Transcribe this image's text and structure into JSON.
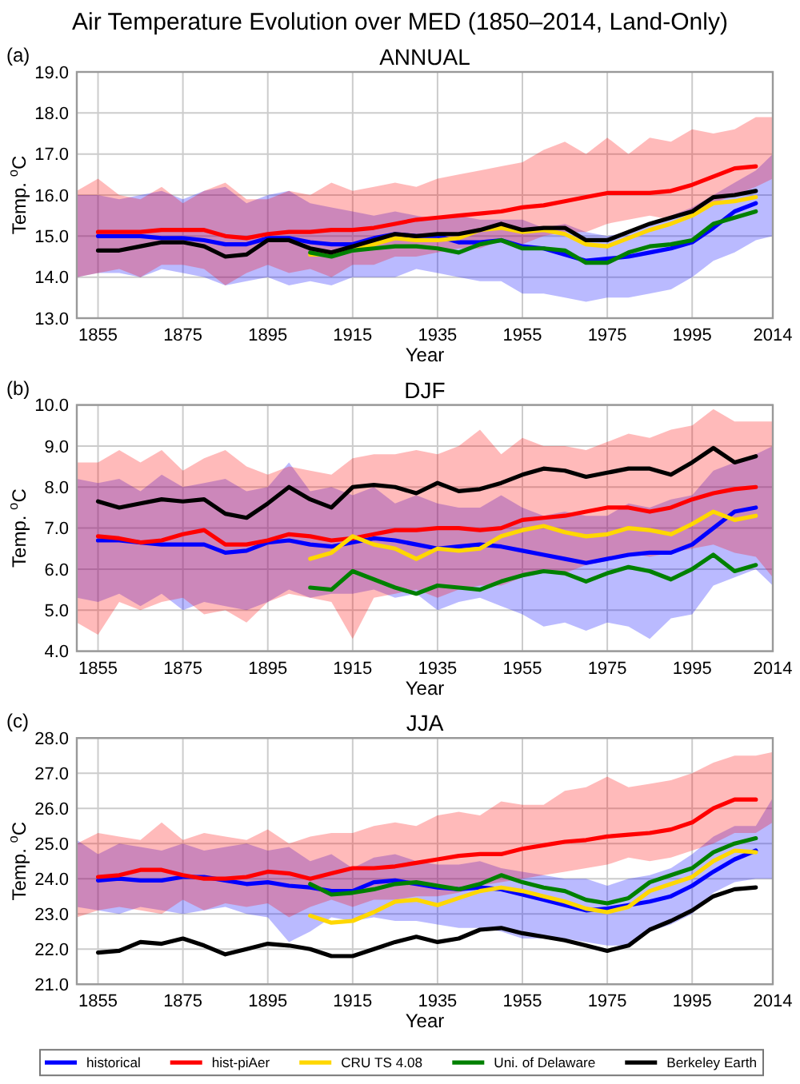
{
  "chart_data": [
    {
      "type": "line",
      "title": "Air Temperature Evolution over MED (1850–2014, Land-Only)",
      "subtitle": "ANNUAL",
      "xlabel": "Year",
      "ylabel": "Temp. $^{o}$C",
      "annotations": [
        "(a)"
      ],
      "x": [
        1850,
        1855,
        1860,
        1865,
        1870,
        1875,
        1880,
        1885,
        1890,
        1895,
        1900,
        1905,
        1910,
        1915,
        1920,
        1925,
        1930,
        1935,
        1940,
        1945,
        1950,
        1955,
        1960,
        1965,
        1970,
        1975,
        1980,
        1985,
        1990,
        1995,
        2000,
        2005,
        2010,
        2014
      ],
      "xlim": [
        1850,
        2014
      ],
      "xticks": [
        1855,
        1875,
        1895,
        1915,
        1935,
        1955,
        1975,
        1995,
        2014
      ],
      "ylim": [
        13,
        19
      ],
      "yticks": [
        {
          "value": 13,
          "label": "13.0"
        },
        {
          "value": 14,
          "label": "14.0"
        },
        {
          "value": 15,
          "label": "15.0"
        },
        {
          "value": 16,
          "label": "16.0"
        },
        {
          "value": 17,
          "label": "17.0"
        },
        {
          "value": 18,
          "label": "18.0"
        },
        {
          "value": 19,
          "label": "19.0"
        }
      ],
      "grid": true,
      "series": [
        {
          "color": "#0000ff",
          "values": [
            null,
            15.0,
            15.0,
            15.0,
            14.95,
            14.95,
            14.9,
            14.8,
            14.8,
            14.95,
            14.95,
            14.85,
            14.8,
            14.8,
            14.95,
            15.05,
            15.0,
            15.0,
            14.85,
            14.85,
            14.9,
            14.75,
            14.7,
            14.55,
            14.4,
            14.45,
            14.5,
            14.6,
            14.7,
            14.85,
            15.2,
            15.6,
            15.8,
            null
          ],
          "lower": [
            14.0,
            14.1,
            14.1,
            14.0,
            14.2,
            14.1,
            14.0,
            13.8,
            13.9,
            14.0,
            13.8,
            13.9,
            13.8,
            14.0,
            14.0,
            14.0,
            14.2,
            14.1,
            14.0,
            13.9,
            13.9,
            13.6,
            13.6,
            13.5,
            13.4,
            13.5,
            13.5,
            13.6,
            13.7,
            14.0,
            14.4,
            14.6,
            14.9,
            15.0
          ],
          "upper": [
            16.0,
            16.0,
            15.9,
            16.0,
            16.1,
            15.9,
            16.1,
            16.2,
            15.8,
            16.0,
            16.1,
            15.8,
            15.7,
            15.6,
            15.5,
            15.6,
            15.5,
            15.4,
            15.5,
            15.4,
            15.4,
            15.4,
            15.2,
            15.3,
            15.1,
            15.0,
            15.1,
            15.3,
            15.5,
            15.7,
            16.0,
            16.3,
            16.6,
            17.0
          ]
        },
        {
          "color": "#ff0000",
          "values": [
            null,
            15.1,
            15.1,
            15.1,
            15.15,
            15.15,
            15.15,
            15.0,
            14.95,
            15.05,
            15.1,
            15.1,
            15.15,
            15.15,
            15.2,
            15.3,
            15.4,
            15.45,
            15.5,
            15.55,
            15.6,
            15.7,
            15.75,
            15.85,
            15.95,
            16.05,
            16.05,
            16.05,
            16.1,
            16.25,
            16.45,
            16.65,
            16.7,
            null
          ],
          "lower": [
            14.0,
            14.1,
            14.2,
            14.0,
            14.3,
            14.3,
            14.2,
            13.8,
            14.1,
            14.3,
            14.1,
            14.2,
            14.0,
            14.3,
            14.3,
            14.5,
            14.5,
            14.6,
            14.7,
            14.7,
            14.9,
            14.8,
            15.0,
            15.1,
            15.1,
            15.3,
            15.4,
            15.5,
            15.4,
            15.6,
            15.8,
            16.0,
            16.2,
            16.4
          ],
          "upper": [
            16.1,
            16.4,
            16.0,
            15.9,
            16.2,
            15.8,
            16.1,
            16.3,
            15.9,
            15.9,
            16.1,
            16.0,
            16.3,
            16.1,
            16.2,
            16.3,
            16.2,
            16.4,
            16.5,
            16.6,
            16.7,
            16.8,
            17.1,
            17.3,
            17.0,
            17.4,
            17.0,
            17.4,
            17.3,
            17.6,
            17.5,
            17.6,
            17.9,
            17.9
          ]
        },
        {
          "color": "#ffd700",
          "values": [
            null,
            null,
            null,
            null,
            null,
            null,
            null,
            null,
            null,
            null,
            null,
            14.55,
            14.55,
            14.7,
            14.8,
            14.95,
            14.9,
            14.9,
            14.95,
            15.15,
            15.2,
            15.1,
            15.15,
            15.05,
            14.8,
            14.75,
            14.95,
            15.15,
            15.3,
            15.5,
            15.8,
            15.85,
            15.95,
            null
          ]
        },
        {
          "color": "#008000",
          "values": [
            null,
            null,
            null,
            null,
            null,
            null,
            null,
            null,
            null,
            null,
            null,
            14.6,
            14.5,
            14.65,
            14.7,
            14.75,
            14.75,
            14.7,
            14.6,
            14.8,
            14.9,
            14.7,
            14.7,
            14.65,
            14.35,
            14.35,
            14.6,
            14.75,
            14.8,
            14.9,
            15.3,
            15.45,
            15.6,
            null
          ]
        },
        {
          "color": "#000000",
          "values": [
            null,
            14.65,
            14.65,
            14.75,
            14.85,
            14.85,
            14.75,
            14.5,
            14.55,
            14.9,
            14.9,
            14.7,
            14.6,
            14.75,
            14.9,
            15.05,
            15.0,
            15.05,
            15.05,
            15.15,
            15.3,
            15.15,
            15.2,
            15.2,
            14.9,
            14.9,
            15.1,
            15.3,
            15.45,
            15.6,
            15.95,
            16.0,
            16.1,
            null
          ]
        }
      ]
    },
    {
      "type": "line",
      "title": "DJF",
      "xlabel": "Year",
      "ylabel": "Temp. $^{o}$C",
      "annotations": [
        "(b)"
      ],
      "x": [
        1850,
        1855,
        1860,
        1865,
        1870,
        1875,
        1880,
        1885,
        1890,
        1895,
        1900,
        1905,
        1910,
        1915,
        1920,
        1925,
        1930,
        1935,
        1940,
        1945,
        1950,
        1955,
        1960,
        1965,
        1970,
        1975,
        1980,
        1985,
        1990,
        1995,
        2000,
        2005,
        2010,
        2014
      ],
      "xlim": [
        1850,
        2014
      ],
      "xticks": [
        1855,
        1875,
        1895,
        1915,
        1935,
        1955,
        1975,
        1995,
        2014
      ],
      "ylim": [
        4,
        10
      ],
      "yticks": [
        {
          "value": 4,
          "label": "4.0"
        },
        {
          "value": 5,
          "label": "5.0"
        },
        {
          "value": 6,
          "label": "6.0"
        },
        {
          "value": 7,
          "label": "7.0"
        },
        {
          "value": 8,
          "label": "8.0"
        },
        {
          "value": 9,
          "label": "9.0"
        },
        {
          "value": 10,
          "label": "10.0"
        }
      ],
      "grid": true,
      "series": [
        {
          "color": "#0000ff",
          "values": [
            null,
            6.7,
            6.7,
            6.65,
            6.6,
            6.6,
            6.6,
            6.4,
            6.45,
            6.65,
            6.7,
            6.6,
            6.55,
            6.65,
            6.75,
            6.7,
            6.6,
            6.5,
            6.55,
            6.6,
            6.55,
            6.45,
            6.35,
            6.25,
            6.15,
            6.25,
            6.35,
            6.4,
            6.4,
            6.6,
            7.0,
            7.4,
            7.5,
            null
          ],
          "lower": [
            5.3,
            5.2,
            5.4,
            5.1,
            5.4,
            5.0,
            5.2,
            5.1,
            5.0,
            5.2,
            5.5,
            5.3,
            5.4,
            5.4,
            5.5,
            5.3,
            5.4,
            5.0,
            5.2,
            5.3,
            5.1,
            4.9,
            4.6,
            4.7,
            4.5,
            4.7,
            4.6,
            4.3,
            4.8,
            4.9,
            5.6,
            5.8,
            6.0,
            5.6
          ],
          "upper": [
            8.2,
            8.1,
            8.2,
            7.9,
            8.3,
            8.0,
            8.1,
            8.2,
            7.9,
            8.0,
            8.6,
            7.9,
            8.0,
            7.8,
            8.0,
            7.6,
            7.8,
            7.6,
            7.5,
            7.5,
            7.8,
            7.5,
            7.3,
            7.4,
            7.3,
            7.3,
            7.6,
            7.5,
            7.7,
            7.8,
            8.4,
            8.6,
            8.8,
            9.0
          ]
        },
        {
          "color": "#ff0000",
          "values": [
            null,
            6.8,
            6.75,
            6.65,
            6.7,
            6.85,
            6.95,
            6.6,
            6.6,
            6.7,
            6.85,
            6.8,
            6.7,
            6.75,
            6.85,
            6.95,
            6.95,
            7.0,
            7.0,
            6.95,
            7.0,
            7.2,
            7.25,
            7.3,
            7.4,
            7.5,
            7.5,
            7.4,
            7.5,
            7.7,
            7.85,
            7.95,
            8.0,
            null
          ],
          "lower": [
            4.7,
            4.4,
            5.2,
            5.0,
            5.2,
            5.3,
            4.9,
            5.0,
            4.7,
            5.2,
            5.4,
            5.3,
            5.2,
            4.3,
            5.3,
            5.4,
            5.5,
            5.3,
            5.5,
            5.6,
            5.6,
            5.8,
            6.0,
            5.9,
            6.1,
            6.2,
            6.4,
            6.3,
            6.4,
            6.5,
            6.6,
            6.4,
            6.3,
            5.8
          ],
          "upper": [
            8.6,
            8.6,
            8.9,
            8.6,
            8.9,
            8.4,
            8.7,
            8.9,
            8.5,
            8.3,
            8.5,
            8.4,
            8.3,
            8.7,
            8.8,
            8.8,
            8.9,
            8.8,
            9.0,
            9.4,
            8.8,
            9.2,
            9.0,
            9.0,
            8.9,
            9.1,
            9.3,
            9.2,
            9.4,
            9.5,
            9.9,
            9.6,
            9.6,
            9.6
          ]
        },
        {
          "color": "#ffd700",
          "values": [
            null,
            null,
            null,
            null,
            null,
            null,
            null,
            null,
            null,
            null,
            null,
            6.25,
            6.4,
            6.8,
            6.6,
            6.5,
            6.25,
            6.5,
            6.45,
            6.5,
            6.8,
            6.95,
            7.05,
            6.9,
            6.8,
            6.85,
            7.0,
            6.95,
            6.85,
            7.1,
            7.4,
            7.2,
            7.3,
            null
          ]
        },
        {
          "color": "#008000",
          "values": [
            null,
            null,
            null,
            null,
            null,
            null,
            null,
            null,
            null,
            null,
            null,
            5.55,
            5.5,
            5.95,
            5.75,
            5.55,
            5.4,
            5.6,
            5.55,
            5.5,
            5.7,
            5.85,
            5.95,
            5.9,
            5.7,
            5.9,
            6.05,
            5.95,
            5.75,
            6.0,
            6.35,
            5.95,
            6.1,
            null
          ]
        },
        {
          "color": "#000000",
          "values": [
            null,
            7.65,
            7.5,
            7.6,
            7.7,
            7.65,
            7.7,
            7.35,
            7.25,
            7.6,
            8.0,
            7.7,
            7.5,
            8.0,
            8.05,
            8.0,
            7.85,
            8.1,
            7.9,
            7.95,
            8.1,
            8.3,
            8.45,
            8.4,
            8.25,
            8.35,
            8.45,
            8.45,
            8.3,
            8.6,
            8.95,
            8.6,
            8.75,
            null
          ]
        }
      ]
    },
    {
      "type": "line",
      "title": "JJA",
      "xlabel": "Year",
      "ylabel": "Temp. $^{o}$C",
      "annotations": [
        "(c)"
      ],
      "x": [
        1850,
        1855,
        1860,
        1865,
        1870,
        1875,
        1880,
        1885,
        1890,
        1895,
        1900,
        1905,
        1910,
        1915,
        1920,
        1925,
        1930,
        1935,
        1940,
        1945,
        1950,
        1955,
        1960,
        1965,
        1970,
        1975,
        1980,
        1985,
        1990,
        1995,
        2000,
        2005,
        2010,
        2014
      ],
      "xlim": [
        1850,
        2014
      ],
      "xticks": [
        1855,
        1875,
        1895,
        1915,
        1935,
        1955,
        1975,
        1995,
        2014
      ],
      "ylim": [
        21,
        28
      ],
      "yticks": [
        {
          "value": 21,
          "label": "21.0"
        },
        {
          "value": 22,
          "label": "22.0"
        },
        {
          "value": 23,
          "label": "23.0"
        },
        {
          "value": 24,
          "label": "24.0"
        },
        {
          "value": 25,
          "label": "25.0"
        },
        {
          "value": 26,
          "label": "26.0"
        },
        {
          "value": 27,
          "label": "27.0"
        },
        {
          "value": 28,
          "label": "28.0"
        }
      ],
      "grid": true,
      "legend": "bottom",
      "series": [
        {
          "name": "historical",
          "color": "#0000ff",
          "values": [
            null,
            23.95,
            24.0,
            23.95,
            23.95,
            24.05,
            24.05,
            23.95,
            23.85,
            23.9,
            23.8,
            23.75,
            23.65,
            23.65,
            23.9,
            23.95,
            23.85,
            23.75,
            23.7,
            23.75,
            23.7,
            23.55,
            23.4,
            23.25,
            23.1,
            23.15,
            23.25,
            23.35,
            23.5,
            23.8,
            24.2,
            24.55,
            24.8,
            null
          ],
          "lower": [
            23.2,
            23.1,
            23.0,
            23.2,
            23.1,
            23.0,
            23.1,
            23.2,
            23.0,
            22.9,
            22.2,
            22.5,
            22.9,
            22.8,
            22.9,
            22.8,
            22.8,
            22.7,
            22.6,
            22.6,
            22.5,
            22.3,
            22.3,
            22.3,
            22.2,
            22.1,
            22.1,
            22.5,
            22.7,
            23.0,
            23.6,
            23.9,
            24.0,
            24.0
          ],
          "upper": [
            25.1,
            24.7,
            25.0,
            24.9,
            24.8,
            25.0,
            24.8,
            24.9,
            25.0,
            24.8,
            24.9,
            24.5,
            24.7,
            24.3,
            24.6,
            24.7,
            24.5,
            24.4,
            24.4,
            24.5,
            24.3,
            24.2,
            24.1,
            24.0,
            24.0,
            23.8,
            24.0,
            24.1,
            24.3,
            24.7,
            25.2,
            25.5,
            25.5,
            26.3
          ]
        },
        {
          "name": "hist-piAer",
          "color": "#ff0000",
          "values": [
            null,
            24.05,
            24.1,
            24.25,
            24.25,
            24.1,
            24.0,
            24.0,
            24.05,
            24.2,
            24.15,
            24.0,
            24.15,
            24.3,
            24.3,
            24.35,
            24.45,
            24.55,
            24.65,
            24.7,
            24.7,
            24.85,
            24.95,
            25.05,
            25.1,
            25.2,
            25.25,
            25.3,
            25.4,
            25.6,
            26.0,
            26.25,
            26.25,
            null
          ],
          "lower": [
            22.9,
            23.1,
            23.2,
            23.1,
            23.0,
            23.4,
            23.1,
            23.3,
            23.2,
            23.3,
            22.9,
            23.2,
            23.4,
            23.2,
            23.4,
            23.4,
            23.5,
            23.5,
            23.6,
            23.8,
            23.9,
            24.0,
            24.1,
            24.2,
            24.3,
            24.4,
            24.6,
            24.5,
            24.6,
            24.8,
            25.0,
            25.3,
            25.3,
            25.6
          ],
          "upper": [
            25.0,
            25.3,
            25.2,
            25.1,
            25.6,
            25.1,
            25.3,
            25.2,
            25.1,
            25.4,
            25.0,
            25.2,
            25.3,
            25.3,
            25.5,
            25.6,
            25.5,
            25.8,
            25.9,
            25.8,
            26.2,
            26.1,
            26.1,
            26.5,
            26.6,
            26.9,
            26.6,
            26.7,
            26.8,
            27.0,
            27.3,
            27.5,
            27.5,
            27.6
          ]
        },
        {
          "name": "CRU TS 4.08",
          "color": "#ffd700",
          "values": [
            null,
            null,
            null,
            null,
            null,
            null,
            null,
            null,
            null,
            null,
            null,
            22.95,
            22.75,
            22.8,
            23.05,
            23.35,
            23.4,
            23.25,
            23.45,
            23.65,
            23.75,
            23.65,
            23.5,
            23.35,
            23.15,
            23.05,
            23.2,
            23.65,
            23.85,
            24.05,
            24.5,
            24.8,
            24.75,
            null
          ]
        },
        {
          "name": "Uni. of Delaware",
          "color": "#008000",
          "values": [
            null,
            null,
            null,
            null,
            null,
            null,
            null,
            null,
            null,
            null,
            null,
            23.85,
            23.55,
            23.6,
            23.7,
            23.85,
            23.9,
            23.8,
            23.7,
            23.85,
            24.1,
            23.9,
            23.75,
            23.65,
            23.4,
            23.3,
            23.45,
            23.9,
            24.1,
            24.3,
            24.75,
            25.0,
            25.15,
            null
          ]
        },
        {
          "name": "Berkeley Earth",
          "color": "#000000",
          "values": [
            null,
            21.9,
            21.95,
            22.2,
            22.15,
            22.3,
            22.1,
            21.85,
            22.0,
            22.15,
            22.1,
            22.0,
            21.8,
            21.8,
            22.0,
            22.2,
            22.35,
            22.2,
            22.3,
            22.55,
            22.6,
            22.45,
            22.35,
            22.25,
            22.1,
            21.95,
            22.1,
            22.55,
            22.8,
            23.1,
            23.5,
            23.7,
            23.75,
            null
          ]
        }
      ]
    }
  ]
}
